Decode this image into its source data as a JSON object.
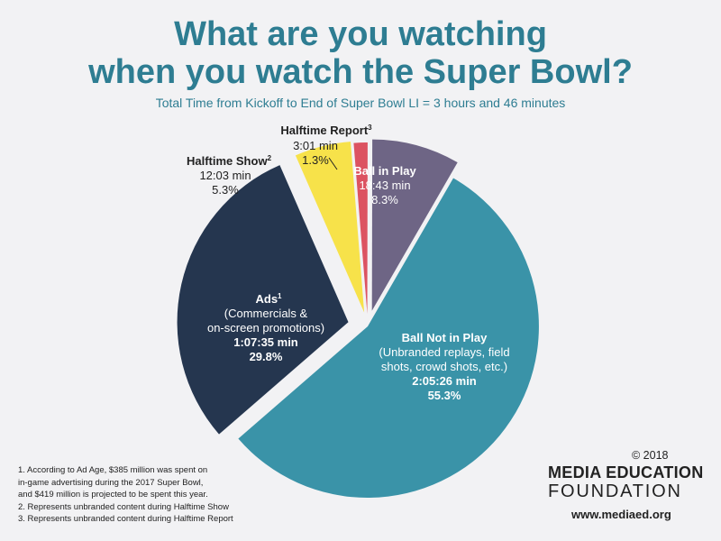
{
  "header": {
    "title_line1": "What are you watching",
    "title_line2": "when you watch the Super Bowl?",
    "subtitle": "Total Time from Kickoff to End of Super Bowl LI = 3 hours and 46 minutes"
  },
  "chart_data": {
    "type": "pie",
    "title": "What are you watching when you watch the Super Bowl?",
    "subtitle": "Total Time from Kickoff to End of Super Bowl LI = 3 hours and 46 minutes",
    "slices": [
      {
        "label": "Ball Not in Play",
        "description": "(Unbranded replays, field shots, crowd shots, etc.)",
        "time": "2:05:26 min",
        "percent": 55.3,
        "color": "#3a93a8"
      },
      {
        "label": "Ads",
        "footnote": "1",
        "description": "(Commercials & on-screen promotions)",
        "time": "1:07:35 min",
        "percent": 29.8,
        "color": "#25364f"
      },
      {
        "label": "Halftime Show",
        "footnote": "2",
        "time": "12:03 min",
        "percent": 5.3,
        "color": "#f7e24a"
      },
      {
        "label": "Halftime Report",
        "footnote": "3",
        "time": "3:01 min",
        "percent": 1.3,
        "color": "#dc5361"
      },
      {
        "label": "Ball in Play",
        "time": "18:43 min",
        "percent": 8.3,
        "color": "#6e6585"
      }
    ]
  },
  "slice_text": {
    "ball_not_in_play": {
      "name": "Ball Not in Play",
      "desc1": "(Unbranded replays, field",
      "desc2": "shots, crowd shots, etc.)",
      "time": "2:05:26 min",
      "pct": "55.3%"
    },
    "ads": {
      "name": "Ads",
      "sup": "1",
      "desc1": "(Commercials &",
      "desc2": "on-screen promotions)",
      "time": "1:07:35 min",
      "pct": "29.8%"
    },
    "halftime_show": {
      "name": "Halftime Show",
      "sup": "2",
      "time": "12:03 min",
      "pct": "5.3%"
    },
    "halftime_report": {
      "name": "Halftime Report",
      "sup": "3",
      "time": "3:01 min",
      "pct": "1.3%"
    },
    "ball_in_play": {
      "name": "Ball in Play",
      "time": "18:43 min",
      "pct": "8.3%"
    }
  },
  "footnotes": [
    "1. According to Ad Age, $385 million was spent on",
    "in-game advertising during the 2017 Super Bowl,",
    "and $419 million is projected to be spent this year.",
    "2. Represents unbranded content during Halftime Show",
    "3. Represents unbranded content during Halftime Report"
  ],
  "branding": {
    "copyright": "© 2018",
    "org_line1": "MEDIA EDUCATION",
    "org_line2": "FOUNDATION",
    "website": "www.mediaed.org"
  }
}
